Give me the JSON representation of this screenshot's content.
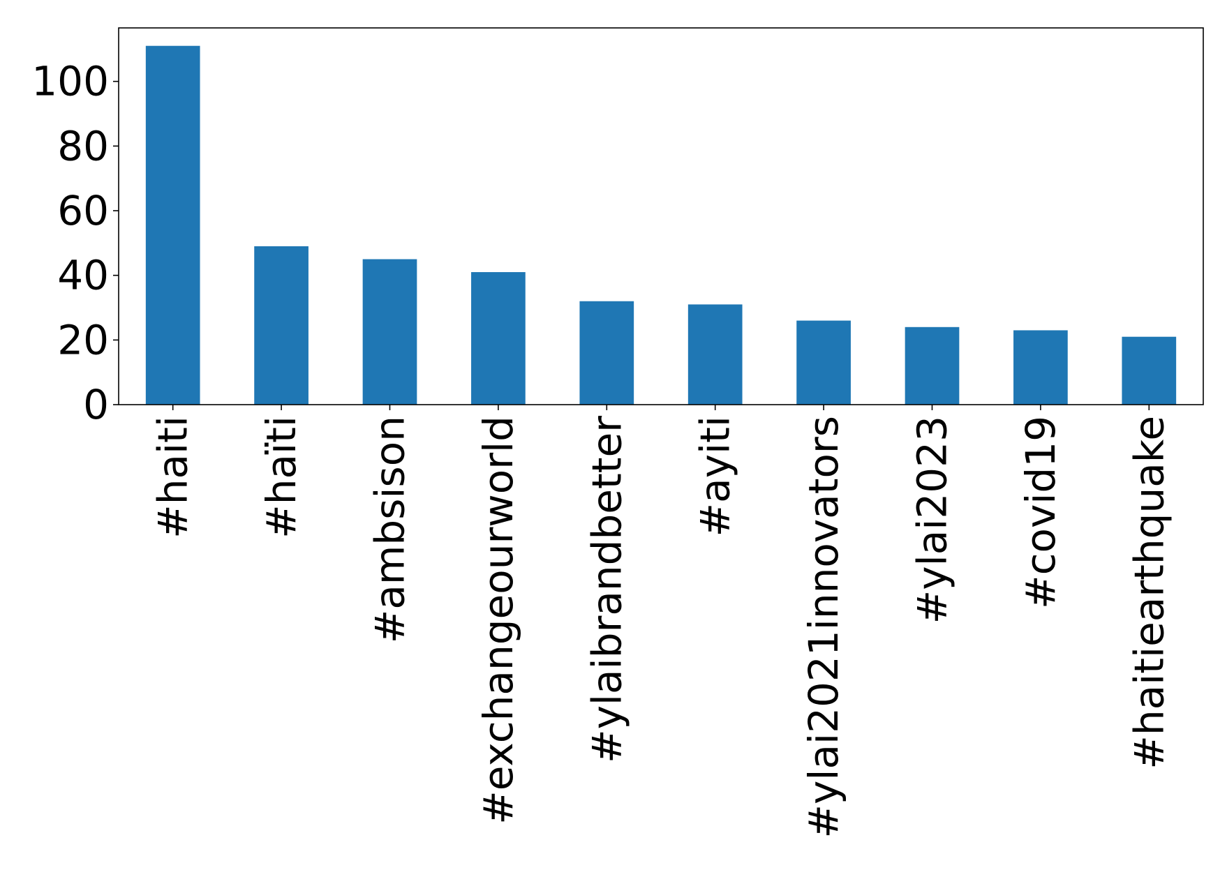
{
  "chart_data": {
    "type": "bar",
    "categories": [
      "#haiti",
      "#haïti",
      "#ambsison",
      "#exchangeourworld",
      "#ylaibrandbetter",
      "#ayiti",
      "#ylai2021innovators",
      "#ylai2023",
      "#covid19",
      "#haitiearthquake"
    ],
    "values": [
      111,
      49,
      45,
      41,
      32,
      31,
      26,
      24,
      23,
      21
    ],
    "title": "",
    "xlabel": "",
    "ylabel": "",
    "ylim": [
      0,
      116.55
    ],
    "yticks": [
      0,
      20,
      40,
      60,
      80,
      100
    ],
    "grid": false,
    "legend": "none",
    "bar_color": "#1f77b4"
  }
}
